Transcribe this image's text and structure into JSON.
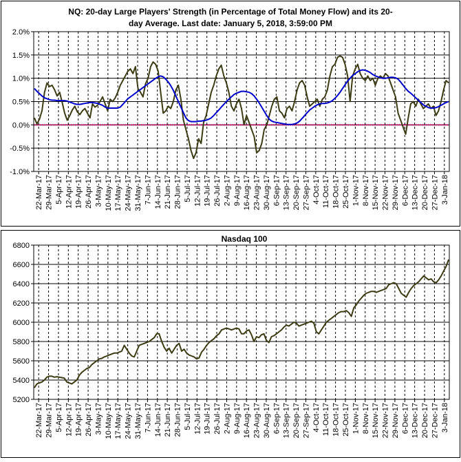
{
  "chart_data": [
    {
      "type": "line",
      "title": "NQ: 20-day Large Players' Strength (in Percentage of Total Money Flow) and its 20-day Average. Last date: January 5, 2018, 3:59:00 PM",
      "title_lines": [
        "NQ: 20-day Large Players' Strength (in Percentage of Total Money Flow) and its 20-",
        "day Average. Last date: January 5, 2018, 3:59:00 PM"
      ],
      "ylim": [
        -1.0,
        2.0
      ],
      "y_ticks": [
        -1.0,
        -0.5,
        0.0,
        0.5,
        1.0,
        1.5,
        2.0
      ],
      "y_tick_labels": [
        "-1.0%",
        "-0.5%",
        "0.0%",
        "0.5%",
        "1.0%",
        "1.5%",
        "2.0%"
      ],
      "x_tick_labels": [
        "22-Mar-17",
        "29-Mar-17",
        "5-Apr-17",
        "12-Apr-17",
        "19-Apr-17",
        "26-Apr-17",
        "3-May-17",
        "10-May-17",
        "17-May-17",
        "24-May-17",
        "31-May-17",
        "7-Jun-17",
        "14-Jun-17",
        "21-Jun-17",
        "28-Jun-17",
        "5-Jul-17",
        "12-Jul-17",
        "19-Jul-17",
        "26-Jul-17",
        "2-Aug-17",
        "9-Aug-17",
        "16-Aug-17",
        "23-Aug-17",
        "30-Aug-17",
        "6-Sep-17",
        "13-Sep-17",
        "20-Sep-17",
        "27-Sep-17",
        "4-Oct-17",
        "11-Oct-17",
        "18-Oct-17",
        "25-Oct-17",
        "1-Nov-17",
        "8-Nov-17",
        "15-Nov-17",
        "22-Nov-17",
        "29-Nov-17",
        "6-Dec-17",
        "13-Dec-17",
        "20-Dec-17",
        "27-Dec-17",
        "3-Jan-18"
      ],
      "grid": true,
      "zero_line_color": "#cc0066",
      "series": [
        {
          "color": "#3b3b14",
          "values": [
            0.15,
            0.02,
            0.12,
            0.3,
            0.7,
            0.9,
            0.82,
            0.85,
            0.75,
            0.62,
            0.7,
            0.48,
            0.25,
            0.1,
            0.2,
            0.32,
            0.4,
            0.28,
            0.22,
            0.3,
            0.35,
            0.25,
            0.15,
            0.45,
            0.38,
            0.42,
            0.5,
            0.6,
            0.45,
            0.3,
            0.55,
            0.5,
            0.58,
            0.7,
            0.85,
            0.95,
            1.05,
            1.15,
            1.2,
            1.1,
            1.25,
            0.78,
            0.7,
            0.6,
            0.88,
            1.0,
            1.25,
            1.35,
            1.3,
            1.15,
            0.7,
            0.25,
            0.3,
            0.4,
            0.35,
            0.5,
            0.75,
            0.85,
            0.55,
            0.1,
            -0.1,
            -0.3,
            -0.55,
            -0.72,
            -0.6,
            -0.3,
            -0.4,
            0.05,
            0.2,
            0.45,
            0.7,
            0.85,
            1.05,
            1.2,
            1.28,
            1.05,
            0.9,
            0.7,
            0.4,
            0.3,
            0.45,
            0.55,
            0.35,
            0.0,
            0.2,
            0.05,
            -0.1,
            -0.25,
            -0.6,
            -0.55,
            -0.4,
            -0.1,
            0.0,
            0.2,
            0.4,
            0.55,
            0.6,
            0.3,
            0.25,
            0.15,
            0.35,
            0.4,
            0.3,
            0.5,
            0.75,
            0.9,
            0.95,
            0.85,
            0.6,
            0.4,
            0.45,
            0.5,
            0.55,
            0.4,
            0.55,
            0.6,
            0.75,
            1.05,
            1.25,
            1.3,
            1.45,
            1.48,
            1.45,
            1.3,
            1.05,
            0.5,
            1.05,
            1.2,
            1.3,
            1.1,
            1.0,
            0.95,
            1.05,
            0.95,
            1.0,
            0.85,
            1.0,
            1.05,
            1.0,
            1.1,
            1.05,
            0.9,
            0.75,
            0.6,
            0.25,
            0.1,
            -0.05,
            -0.2,
            0.15,
            0.45,
            0.5,
            0.4,
            0.55,
            0.45,
            0.35,
            0.4,
            0.45,
            0.35,
            0.4,
            0.2,
            0.3,
            0.5,
            0.75,
            0.95,
            0.9
          ]
        },
        {
          "color": "#0000cc",
          "values": [
            0.78,
            0.72,
            0.67,
            0.62,
            0.58,
            0.56,
            0.54,
            0.53,
            0.53,
            0.52,
            0.52,
            0.52,
            0.52,
            0.51,
            0.49,
            0.47,
            0.45,
            0.44,
            0.44,
            0.45,
            0.46,
            0.47,
            0.48,
            0.48,
            0.47,
            0.46,
            0.44,
            0.42,
            0.38,
            0.36,
            0.36,
            0.36,
            0.36,
            0.36,
            0.38,
            0.44,
            0.5,
            0.56,
            0.6,
            0.64,
            0.68,
            0.72,
            0.76,
            0.8,
            0.84,
            0.88,
            0.92,
            0.96,
            1.0,
            1.03,
            1.05,
            1.03,
            0.98,
            0.92,
            0.84,
            0.74,
            0.62,
            0.5,
            0.38,
            0.26,
            0.15,
            0.09,
            0.07,
            0.07,
            0.07,
            0.08,
            0.08,
            0.09,
            0.1,
            0.12,
            0.15,
            0.2,
            0.26,
            0.32,
            0.38,
            0.44,
            0.5,
            0.55,
            0.6,
            0.65,
            0.68,
            0.7,
            0.72,
            0.72,
            0.71,
            0.7,
            0.67,
            0.62,
            0.55,
            0.47,
            0.38,
            0.29,
            0.2,
            0.12,
            0.08,
            0.06,
            0.05,
            0.04,
            0.03,
            0.02,
            0.01,
            0.01,
            0.01,
            0.02,
            0.04,
            0.08,
            0.14,
            0.2,
            0.26,
            0.32,
            0.36,
            0.4,
            0.43,
            0.45,
            0.46,
            0.46,
            0.47,
            0.49,
            0.52,
            0.57,
            0.63,
            0.7,
            0.78,
            0.86,
            0.94,
            1.0,
            1.06,
            1.1,
            1.14,
            1.17,
            1.18,
            1.17,
            1.15,
            1.12,
            1.08,
            1.05,
            1.03,
            1.01,
            1.0,
            1.0,
            1.01,
            1.02,
            1.02,
            1.01,
            0.98,
            0.92,
            0.85,
            0.78,
            0.72,
            0.68,
            0.63,
            0.58,
            0.53,
            0.48,
            0.43,
            0.4,
            0.37,
            0.36,
            0.36,
            0.37,
            0.39,
            0.42,
            0.45,
            0.48,
            0.5
          ]
        }
      ]
    },
    {
      "type": "line",
      "title": "Nasdaq 100",
      "ylim": [
        5200,
        6800
      ],
      "y_ticks": [
        5200,
        5400,
        5600,
        5800,
        6000,
        6200,
        6400,
        6600,
        6800
      ],
      "y_tick_labels": [
        "5200",
        "5400",
        "5600",
        "5800",
        "6000",
        "6200",
        "6400",
        "6600",
        "6800"
      ],
      "x_tick_labels": [
        "22-Mar-17",
        "29-Mar-17",
        "5-Apr-17",
        "12-Apr-17",
        "19-Apr-17",
        "26-Apr-17",
        "3-May-17",
        "10-May-17",
        "17-May-17",
        "24-May-17",
        "31-May-17",
        "7-Jun-17",
        "14-Jun-17",
        "21-Jun-17",
        "28-Jun-17",
        "5-Jul-17",
        "12-Jul-17",
        "19-Jul-17",
        "26-Jul-17",
        "2-Aug-17",
        "9-Aug-17",
        "16-Aug-17",
        "23-Aug-17",
        "30-Aug-17",
        "6-Sep-17",
        "13-Sep-17",
        "20-Sep-17",
        "27-Sep-17",
        "4-Oct-17",
        "11-Oct-17",
        "18-Oct-17",
        "25-Oct-17",
        "1-Nov-17",
        "8-Nov-17",
        "15-Nov-17",
        "22-Nov-17",
        "29-Nov-17",
        "6-Dec-17",
        "13-Dec-17",
        "20-Dec-17",
        "27-Dec-17",
        "3-Jan-18"
      ],
      "grid": true,
      "series": [
        {
          "color": "#3b3b14",
          "values": [
            5320,
            5360,
            5370,
            5380,
            5400,
            5430,
            5440,
            5440,
            5430,
            5435,
            5430,
            5425,
            5420,
            5380,
            5370,
            5360,
            5380,
            5400,
            5450,
            5480,
            5500,
            5520,
            5530,
            5560,
            5580,
            5600,
            5620,
            5625,
            5640,
            5650,
            5660,
            5670,
            5680,
            5680,
            5690,
            5700,
            5760,
            5720,
            5680,
            5650,
            5640,
            5700,
            5760,
            5770,
            5780,
            5790,
            5800,
            5820,
            5840,
            5880,
            5880,
            5800,
            5740,
            5700,
            5730,
            5680,
            5720,
            5760,
            5780,
            5700,
            5720,
            5680,
            5660,
            5650,
            5640,
            5620,
            5630,
            5690,
            5720,
            5760,
            5790,
            5810,
            5830,
            5860,
            5880,
            5920,
            5930,
            5940,
            5930,
            5920,
            5930,
            5940,
            5930,
            5880,
            5880,
            5910,
            5920,
            5870,
            5800,
            5850,
            5840,
            5870,
            5880,
            5810,
            5790,
            5850,
            5860,
            5880,
            5900,
            5920,
            5950,
            5970,
            5960,
            5980,
            6000,
            5990,
            5960,
            5970,
            5980,
            5990,
            6000,
            6010,
            5990,
            5900,
            5880,
            5920,
            5960,
            6000,
            6020,
            6040,
            6060,
            6080,
            6100,
            6110,
            6110,
            6120,
            6100,
            6060,
            6150,
            6180,
            6220,
            6250,
            6280,
            6300,
            6310,
            6320,
            6320,
            6310,
            6320,
            6330,
            6340,
            6350,
            6390,
            6400,
            6410,
            6400,
            6350,
            6300,
            6280,
            6260,
            6310,
            6350,
            6380,
            6400,
            6420,
            6450,
            6480,
            6460,
            6440,
            6450,
            6420,
            6410,
            6440,
            6480,
            6530,
            6580,
            6650
          ]
        }
      ]
    }
  ]
}
